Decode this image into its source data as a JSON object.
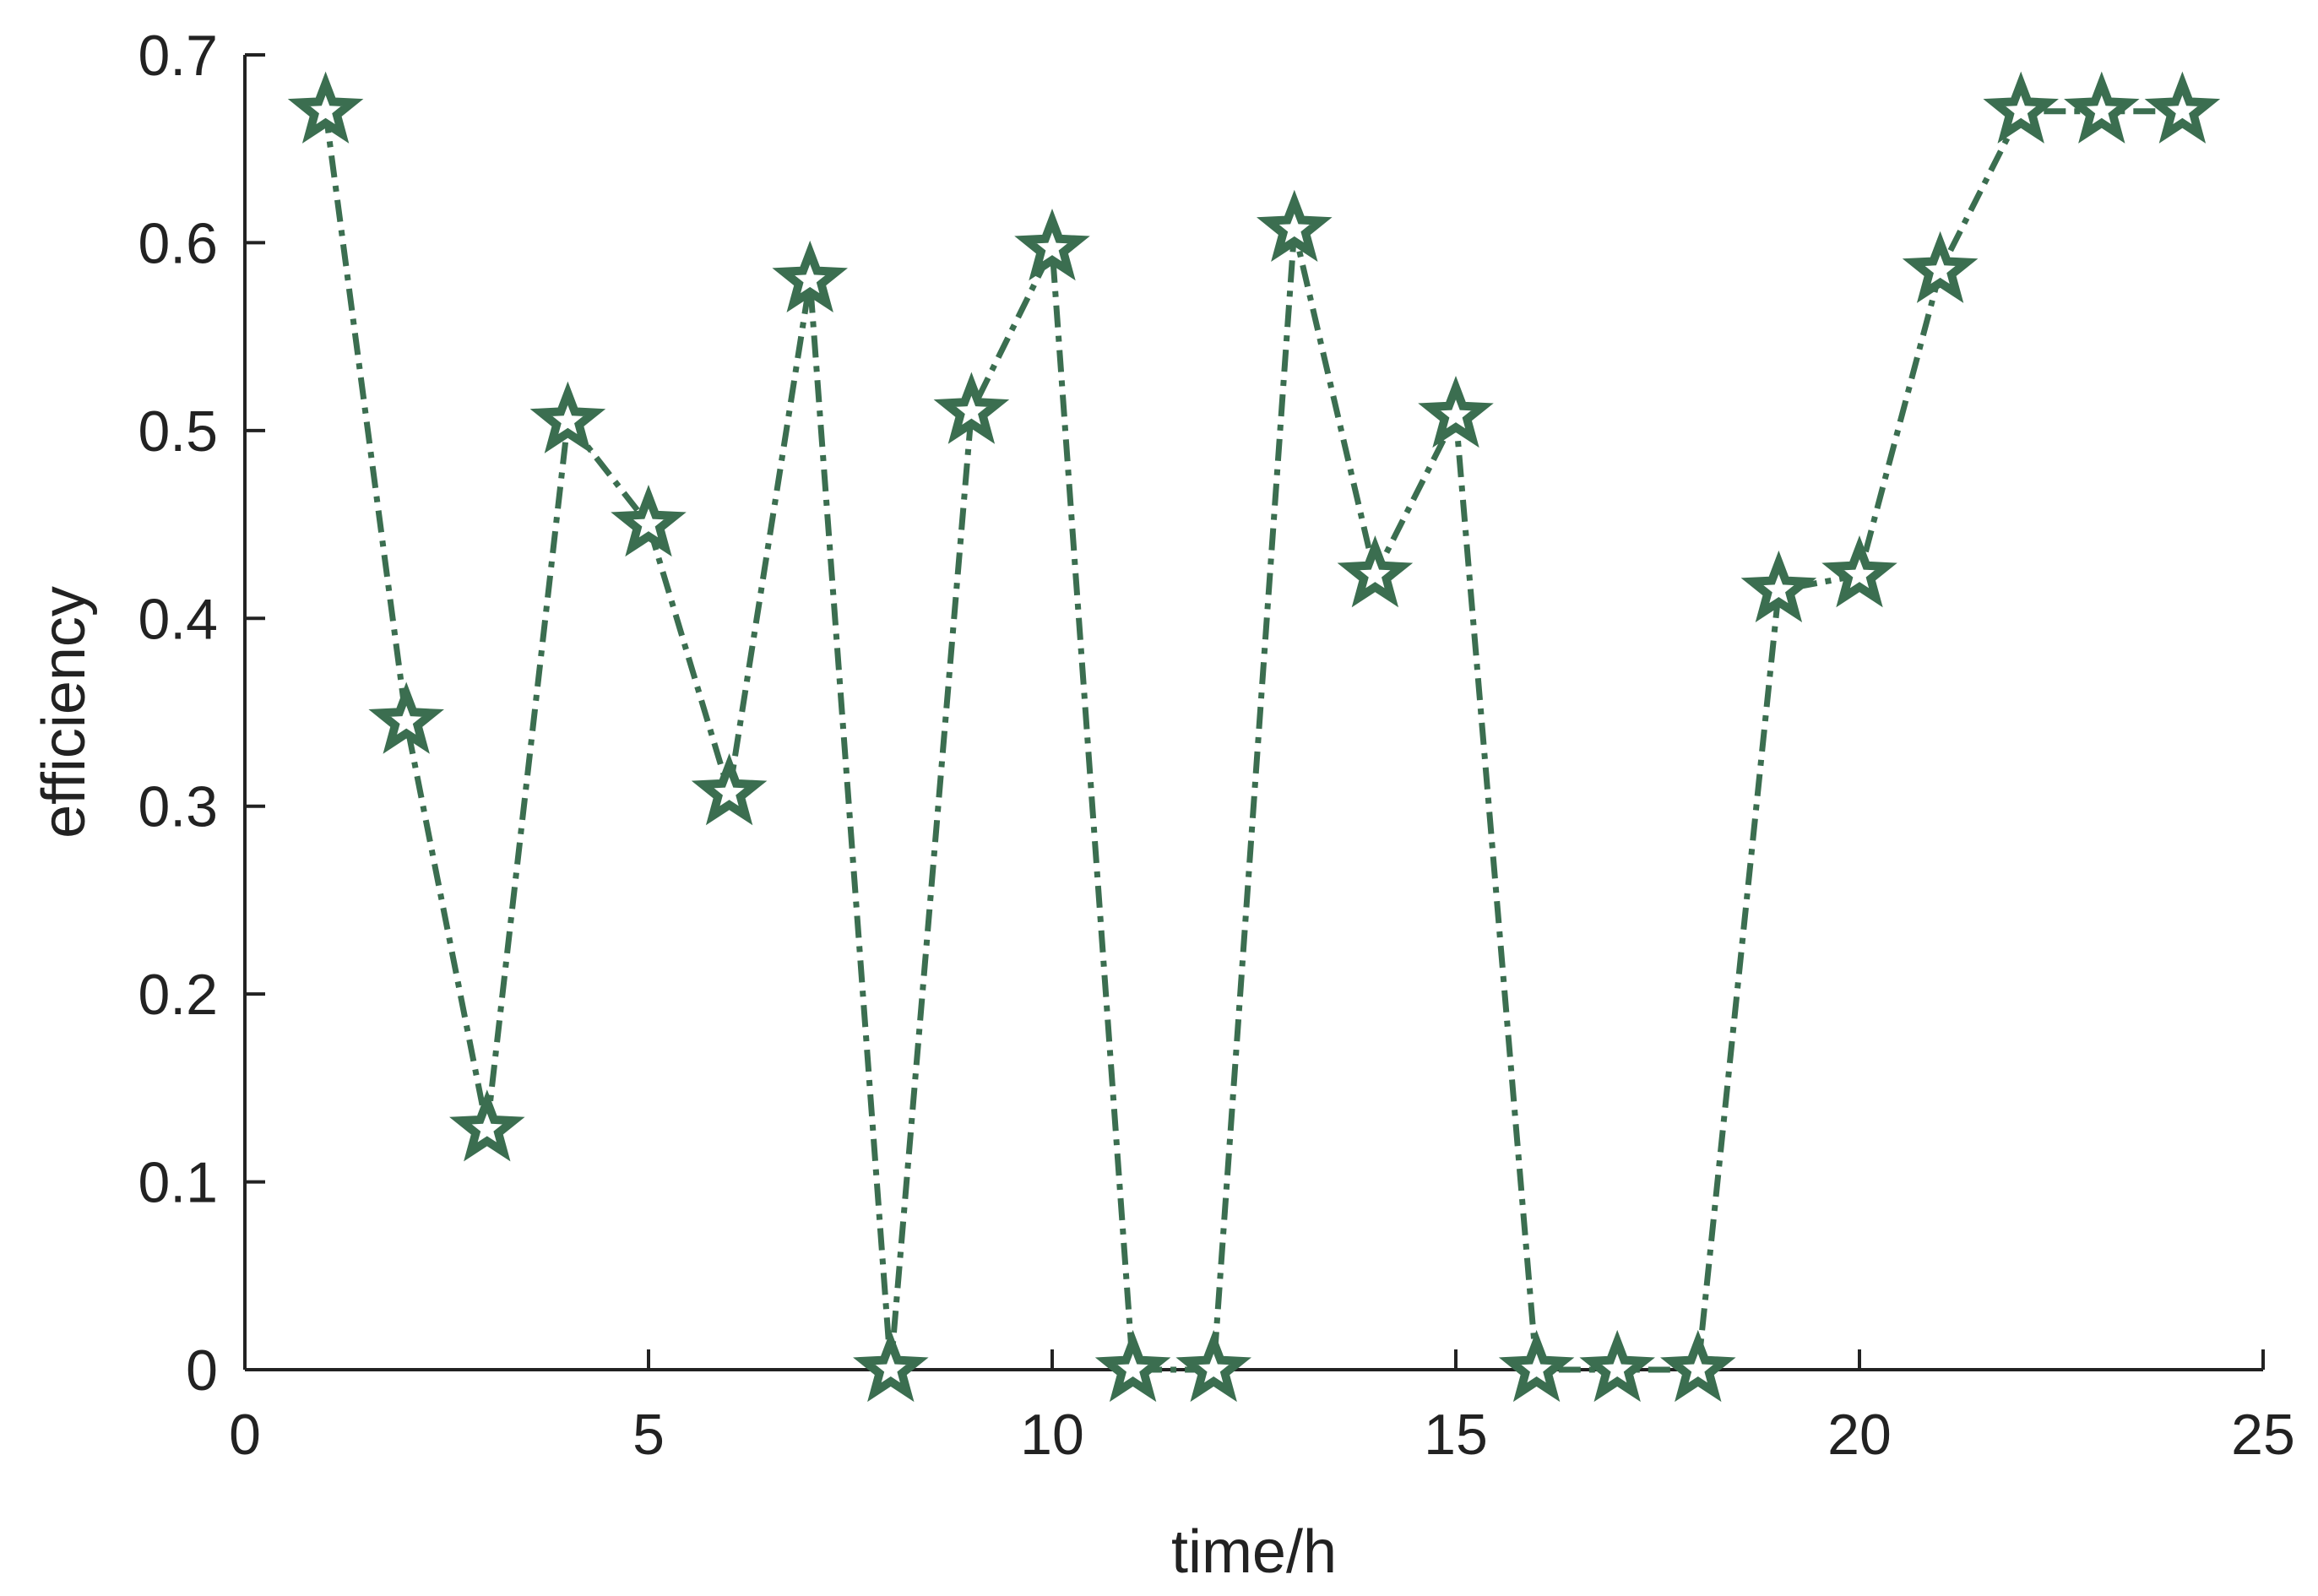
{
  "colors": {
    "series": "#3b6e50",
    "axis": "#222222",
    "background": "#ffffff"
  },
  "chart_data": {
    "type": "line",
    "title": "",
    "xlabel": "time/h",
    "ylabel": "efficiency",
    "xlim": [
      0,
      25
    ],
    "ylim": [
      0,
      0.7
    ],
    "xticks": [
      0,
      5,
      10,
      15,
      20,
      25
    ],
    "yticks": [
      0,
      0.1,
      0.2,
      0.3,
      0.4,
      0.5,
      0.6,
      0.7
    ],
    "xtick_labels": [
      "0",
      "5",
      "10",
      "15",
      "20",
      "25"
    ],
    "ytick_labels": [
      "0",
      "0.1",
      "0.2",
      "0.3",
      "0.4",
      "0.5",
      "0.6",
      "0.7"
    ],
    "grid": false,
    "legend": "none",
    "line_style": "dash-dot",
    "marker": "star",
    "series": [
      {
        "x": [
          1,
          2,
          3,
          4,
          5,
          6,
          7,
          8,
          9,
          10,
          11,
          12,
          13,
          14,
          15,
          16,
          17,
          18,
          19,
          20,
          21,
          22,
          23,
          24
        ],
        "values": [
          0.67,
          0.345,
          0.128,
          0.505,
          0.45,
          0.307,
          0.58,
          0.0,
          0.51,
          0.597,
          0.0,
          0.0,
          0.607,
          0.423,
          0.508,
          0.0,
          0.0,
          0.0,
          0.415,
          0.423,
          0.585,
          0.67,
          0.67,
          0.67
        ]
      }
    ]
  }
}
